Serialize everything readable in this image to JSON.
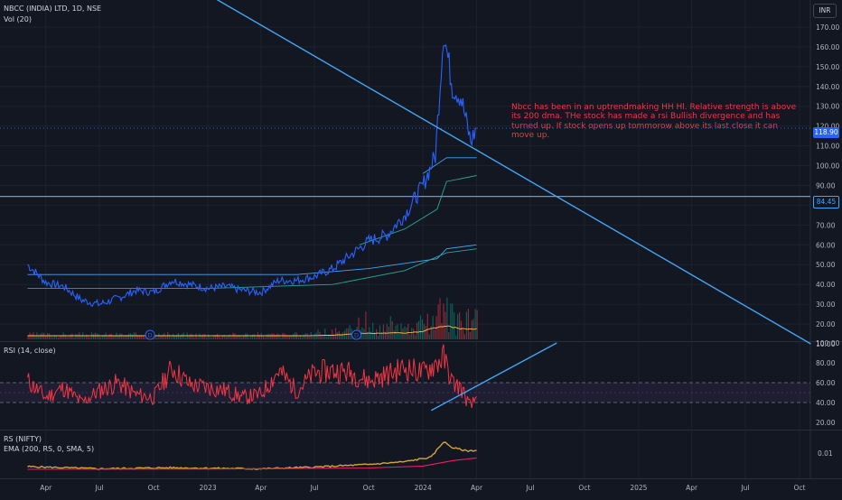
{
  "header": {
    "symbol_line": "NBCC (INDIA) LTD, 1D, NSE",
    "volume_label": "Vol (20)",
    "currency_badge": "INR"
  },
  "panes": {
    "rsi_label": "RSI (14, close)",
    "rs_label": "RS (NIFTY)",
    "ema_label": "EMA (200, RS, 0, SMA, 5)"
  },
  "annotation": {
    "text": "Nbcc has been in an uptrendmaking HH Hl. Relative strength is above its 200 dma.  THe stock has made a rsi Bullish divergence and has turned up. If stock opens up tommorow above its last close it can move up."
  },
  "price_tags": {
    "last_price": "118.90",
    "level_price": "84.45"
  },
  "colors": {
    "background": "#131722",
    "price_line": "#2962ff",
    "trend_line": "#42a5f5",
    "rsi_line": "#f23645",
    "rs_line": "#d4a537",
    "ema_line": "#e91e63",
    "volume_up": "#089981",
    "volume_down": "#f23645"
  },
  "chart_data": {
    "type": "line",
    "x_axis_labels": [
      "Apr",
      "Jul",
      "Oct",
      "2023",
      "Apr",
      "Jul",
      "Oct",
      "2024",
      "Apr",
      "Jul",
      "Oct",
      "2025",
      "Apr",
      "Jul",
      "Oct"
    ],
    "price_axis": {
      "ticks": [
        "170.00",
        "160.00",
        "150.00",
        "140.00",
        "130.00",
        "120.00",
        "110.00",
        "100.00",
        "90.00",
        "80.00",
        "70.00",
        "60.00",
        "50.00",
        "40.00",
        "30.00",
        "20.00",
        "10.00"
      ],
      "range": [
        10,
        170
      ]
    },
    "rsi_axis": {
      "ticks": [
        "100.00",
        "80.00",
        "60.00",
        "40.00",
        "20.00"
      ],
      "range": [
        20,
        100
      ],
      "band": [
        40,
        60
      ]
    },
    "rs_axis": {
      "ticks": [
        "0.01"
      ]
    },
    "price_series": [
      [
        "2022-03-01",
        50
      ],
      [
        "2022-04-01",
        41
      ],
      [
        "2022-05-01",
        39
      ],
      [
        "2022-06-01",
        32
      ],
      [
        "2022-07-01",
        30
      ],
      [
        "2022-08-01",
        33
      ],
      [
        "2022-09-01",
        37
      ],
      [
        "2022-10-01",
        36
      ],
      [
        "2022-11-01",
        42
      ],
      [
        "2022-12-01",
        40
      ],
      [
        "2023-01-01",
        38
      ],
      [
        "2023-02-01",
        39
      ],
      [
        "2023-03-01",
        37
      ],
      [
        "2023-04-01",
        36
      ],
      [
        "2023-05-01",
        42
      ],
      [
        "2023-06-01",
        42
      ],
      [
        "2023-07-01",
        44
      ],
      [
        "2023-08-01",
        48
      ],
      [
        "2023-09-01",
        55
      ],
      [
        "2023-10-01",
        62
      ],
      [
        "2023-11-01",
        65
      ],
      [
        "2023-12-01",
        75
      ],
      [
        "2024-01-01",
        90
      ],
      [
        "2024-01-22",
        105
      ],
      [
        "2024-02-05",
        168
      ],
      [
        "2024-02-20",
        140
      ],
      [
        "2024-03-05",
        135
      ],
      [
        "2024-03-22",
        112
      ],
      [
        "2024-04-01",
        118.9
      ]
    ],
    "ma_series": [
      {
        "values": [
          [
            "2024-01-01",
            96
          ],
          [
            "2024-02-10",
            104
          ],
          [
            "2024-04-01",
            104
          ]
        ]
      },
      {
        "values": [
          [
            "2023-09-15",
            60
          ],
          [
            "2023-12-01",
            68
          ],
          [
            "2024-01-25",
            78
          ],
          [
            "2024-02-10",
            92
          ],
          [
            "2024-04-01",
            95
          ]
        ]
      },
      {
        "values": [
          [
            "2022-03-01",
            45
          ],
          [
            "2023-06-01",
            45
          ],
          [
            "2023-10-01",
            48
          ],
          [
            "2024-01-25",
            53
          ],
          [
            "2024-02-10",
            58
          ],
          [
            "2024-04-01",
            60
          ]
        ]
      },
      {
        "values": [
          [
            "2022-03-01",
            38
          ],
          [
            "2023-01-01",
            38
          ],
          [
            "2023-08-01",
            40
          ],
          [
            "2023-12-01",
            47
          ],
          [
            "2024-02-10",
            56
          ],
          [
            "2024-04-01",
            58
          ]
        ]
      }
    ],
    "horizontal_level": 84.45,
    "last_price": 118.9,
    "trendlines": [
      {
        "pane": "price",
        "from": [
          "2022-10-15",
          200
        ],
        "to": [
          "2025-10-20",
          10
        ]
      },
      {
        "pane": "rsi",
        "from": [
          "2024-01-15",
          32
        ],
        "to": [
          "2024-08-15",
          100
        ]
      }
    ],
    "rsi_series": [
      [
        "2022-03-01",
        62
      ],
      [
        "2022-04-01",
        45
      ],
      [
        "2022-05-01",
        55
      ],
      [
        "2022-06-01",
        40
      ],
      [
        "2022-07-01",
        52
      ],
      [
        "2022-08-01",
        60
      ],
      [
        "2022-09-01",
        48
      ],
      [
        "2022-10-01",
        45
      ],
      [
        "2022-11-01",
        75
      ],
      [
        "2022-12-01",
        58
      ],
      [
        "2023-01-01",
        55
      ],
      [
        "2023-02-01",
        52
      ],
      [
        "2023-03-01",
        45
      ],
      [
        "2023-04-01",
        48
      ],
      [
        "2023-05-01",
        72
      ],
      [
        "2023-06-01",
        52
      ],
      [
        "2023-07-01",
        70
      ],
      [
        "2023-08-01",
        72
      ],
      [
        "2023-09-01",
        70
      ],
      [
        "2023-10-01",
        62
      ],
      [
        "2023-11-01",
        68
      ],
      [
        "2023-12-01",
        75
      ],
      [
        "2024-01-01",
        70
      ],
      [
        "2024-02-05",
        85
      ],
      [
        "2024-02-20",
        60
      ],
      [
        "2024-03-05",
        55
      ],
      [
        "2024-03-22",
        35
      ],
      [
        "2024-04-01",
        46
      ]
    ],
    "rs_series": [
      [
        "2022-03-01",
        0.005
      ],
      [
        "2022-07-01",
        0.0042
      ],
      [
        "2022-11-01",
        0.0046
      ],
      [
        "2023-01-01",
        0.0044
      ],
      [
        "2023-04-01",
        0.0042
      ],
      [
        "2023-07-01",
        0.0048
      ],
      [
        "2023-10-01",
        0.0058
      ],
      [
        "2023-12-01",
        0.0068
      ],
      [
        "2024-01-15",
        0.0085
      ],
      [
        "2024-02-05",
        0.0142
      ],
      [
        "2024-02-20",
        0.012
      ],
      [
        "2024-03-15",
        0.0108
      ],
      [
        "2024-04-01",
        0.011
      ]
    ],
    "ema_series": [
      [
        "2022-03-01",
        0.004
      ],
      [
        "2023-01-01",
        0.0041
      ],
      [
        "2023-10-01",
        0.0045
      ],
      [
        "2024-01-01",
        0.0052
      ],
      [
        "2024-02-20",
        0.0072
      ],
      [
        "2024-04-01",
        0.0082
      ]
    ],
    "events": [
      "D",
      "D"
    ]
  }
}
